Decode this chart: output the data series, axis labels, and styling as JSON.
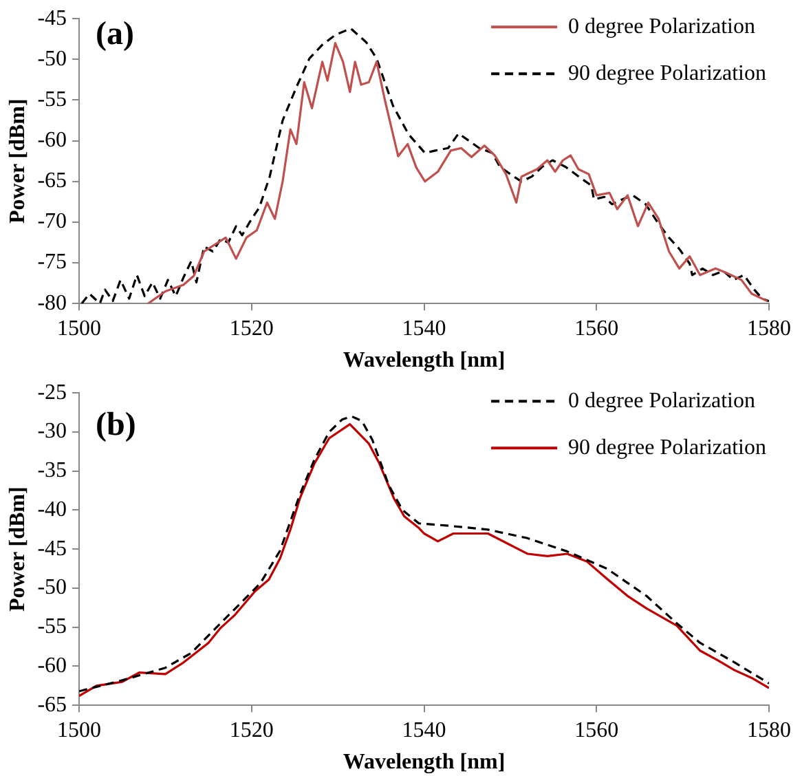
{
  "chart_data": [
    {
      "type": "line",
      "title": "(a)",
      "xlabel": "Wavelength [nm]",
      "ylabel": "Power [dBm]",
      "xlim": [
        1500,
        1580
      ],
      "xticks": [
        1500,
        1520,
        1540,
        1560,
        1580
      ],
      "ylim": [
        -80,
        -45
      ],
      "yticks": [
        -80,
        -75,
        -70,
        -65,
        -60,
        -55,
        -50,
        -45
      ],
      "grid": false,
      "legend": "top right",
      "marker": "none",
      "series": [
        {
          "name": "0 degree Polarization",
          "color": "#c0504d",
          "line_style": "solid",
          "x": [
            1508,
            1510,
            1512.1,
            1513.3,
            1514.5,
            1517,
            1518.2,
            1519.4,
            1520.6,
            1521.8,
            1522.7,
            1523.6,
            1524.5,
            1525.2,
            1526.1,
            1527,
            1528.2,
            1528.8,
            1529.7,
            1530.6,
            1531.4,
            1532,
            1532.7,
            1533.6,
            1534.5,
            1535.5,
            1537,
            1538.1,
            1539.1,
            1540.1,
            1541.6,
            1543.1,
            1544.3,
            1545.5,
            1547,
            1548.2,
            1549.5,
            1550.7,
            1551.3,
            1553.1,
            1554.3,
            1555.2,
            1556.1,
            1557,
            1557.9,
            1559.1,
            1560,
            1561.5,
            1562.4,
            1563.6,
            1564.8,
            1566,
            1567.2,
            1568.4,
            1569.6,
            1570.8,
            1572,
            1573.8,
            1575,
            1576.8,
            1578,
            1579.8
          ],
          "values": [
            -80,
            -78.5,
            -77.7,
            -76.6,
            -73.6,
            -71.9,
            -74.5,
            -71.9,
            -71,
            -67.6,
            -69.6,
            -65,
            -58.6,
            -60.4,
            -52.8,
            -56,
            -50.3,
            -52.6,
            -48,
            -50.3,
            -54,
            -50.3,
            -53.1,
            -52.8,
            -50.3,
            -55.2,
            -61.9,
            -60.4,
            -63.3,
            -65,
            -63.8,
            -61.2,
            -60.9,
            -62,
            -60.6,
            -61.8,
            -64.1,
            -67.6,
            -64.4,
            -63.5,
            -62.4,
            -63.8,
            -62.4,
            -61.8,
            -63.5,
            -64.1,
            -66.7,
            -66.4,
            -68.4,
            -66.7,
            -70.5,
            -67.6,
            -69.6,
            -73.6,
            -75.7,
            -74.2,
            -76.5,
            -75.7,
            -76.2,
            -77.1,
            -78.8,
            -79.7
          ]
        },
        {
          "name": "90 degree Polarization",
          "color": "#000000",
          "line_style": "dashed",
          "x": [
            1500.3,
            1501.2,
            1502.4,
            1503,
            1503.9,
            1504.8,
            1505.8,
            1506.7,
            1507.6,
            1508.5,
            1509.4,
            1510.3,
            1511.2,
            1512.1,
            1513,
            1513.6,
            1514.5,
            1515.5,
            1516.4,
            1517.3,
            1518.2,
            1518.9,
            1520,
            1520.9,
            1522.1,
            1523.6,
            1525.2,
            1526.7,
            1528.2,
            1529.7,
            1531.5,
            1533.3,
            1534.5,
            1536.4,
            1538.2,
            1540.1,
            1541.3,
            1542.8,
            1544,
            1545.2,
            1546.4,
            1547.9,
            1548.8,
            1550.4,
            1551.3,
            1552.5,
            1553.7,
            1554.9,
            1556.4,
            1558.2,
            1559.4,
            1559.7,
            1560.9,
            1561.8,
            1563,
            1564.2,
            1565.7,
            1567.2,
            1568.4,
            1569.6,
            1570.8,
            1571.1,
            1572.3,
            1573.5,
            1574.7,
            1575.9,
            1577.1,
            1578.3,
            1579.2,
            1580
          ],
          "values": [
            -80,
            -78.8,
            -80,
            -78.3,
            -79.7,
            -77.1,
            -79.4,
            -76.5,
            -79.1,
            -77.4,
            -79.4,
            -77.1,
            -79.1,
            -76.8,
            -74.8,
            -77.4,
            -73,
            -73.6,
            -72.1,
            -72.5,
            -70.5,
            -71.6,
            -69.6,
            -68.2,
            -64.4,
            -57.5,
            -53.4,
            -49.9,
            -48.2,
            -47,
            -46.2,
            -47.9,
            -49.9,
            -55.7,
            -59.2,
            -61.5,
            -61.2,
            -60.9,
            -59.1,
            -60,
            -60.9,
            -61.5,
            -63.2,
            -64.4,
            -65,
            -64.4,
            -63.2,
            -62.4,
            -63.2,
            -64.6,
            -65.5,
            -67.2,
            -66.9,
            -67.8,
            -67.2,
            -66.7,
            -67.8,
            -70.2,
            -71.9,
            -73.3,
            -75.1,
            -76.5,
            -75.7,
            -76.5,
            -76,
            -77.1,
            -76.5,
            -78.3,
            -79.4,
            -79.7
          ]
        }
      ]
    },
    {
      "type": "line",
      "title": "(b)",
      "xlabel": "Wavelength [nm]",
      "ylabel": "Power [dBm]",
      "xlim": [
        1500,
        1580
      ],
      "xticks": [
        1500,
        1520,
        1540,
        1560,
        1580
      ],
      "ylim": [
        -65,
        -25
      ],
      "yticks": [
        -65,
        -60,
        -55,
        -50,
        -45,
        -40,
        -35,
        -30,
        -25
      ],
      "grid": false,
      "legend": "top right",
      "marker": "none",
      "series": [
        {
          "name": "0 degree Polarization",
          "color": "#000000",
          "line_style": "dashed",
          "x": [
            1500,
            1505,
            1510,
            1513,
            1516.4,
            1521,
            1523.3,
            1525.6,
            1527.3,
            1529,
            1530.5,
            1531.6,
            1532.8,
            1534,
            1535.9,
            1537.5,
            1539.4,
            1542.8,
            1547.4,
            1552,
            1556.6,
            1561.2,
            1565.8,
            1569.3,
            1572,
            1576,
            1580
          ],
          "values": [
            -63.2,
            -61.8,
            -60.2,
            -58.3,
            -54.5,
            -49.4,
            -45.2,
            -38,
            -33.5,
            -30,
            -28.4,
            -28,
            -28.6,
            -31,
            -36.8,
            -40,
            -41.7,
            -42,
            -42.5,
            -43.6,
            -45.3,
            -47.5,
            -51,
            -54.5,
            -57,
            -59.5,
            -62.2
          ]
        },
        {
          "name": "90 degree Polarization",
          "color": "#c00000",
          "line_style": "solid",
          "x": [
            1500,
            1502,
            1505,
            1507,
            1510,
            1512,
            1515,
            1516.4,
            1518,
            1520.4,
            1522,
            1523.3,
            1524.5,
            1525.6,
            1527.3,
            1529,
            1531.4,
            1533.6,
            1534.8,
            1536.5,
            1537.7,
            1539.4,
            1540,
            1541.6,
            1543.4,
            1545.1,
            1547.4,
            1549.7,
            1552,
            1554.3,
            1556.6,
            1558.9,
            1561.2,
            1563.6,
            1565.8,
            1569.3,
            1572,
            1574,
            1576,
            1578,
            1580
          ],
          "values": [
            -63.8,
            -62.5,
            -62,
            -60.8,
            -61,
            -59.6,
            -57,
            -55.1,
            -53.5,
            -50.4,
            -48.9,
            -46.2,
            -42.5,
            -38.5,
            -34,
            -30.8,
            -29,
            -31.5,
            -34,
            -38.5,
            -40.8,
            -42.3,
            -43,
            -44,
            -43,
            -43,
            -43,
            -44.3,
            -45.6,
            -45.9,
            -45.6,
            -46.6,
            -48.8,
            -51,
            -52.6,
            -54.8,
            -58,
            -59.2,
            -60.5,
            -61.5,
            -62.8
          ]
        }
      ]
    }
  ]
}
